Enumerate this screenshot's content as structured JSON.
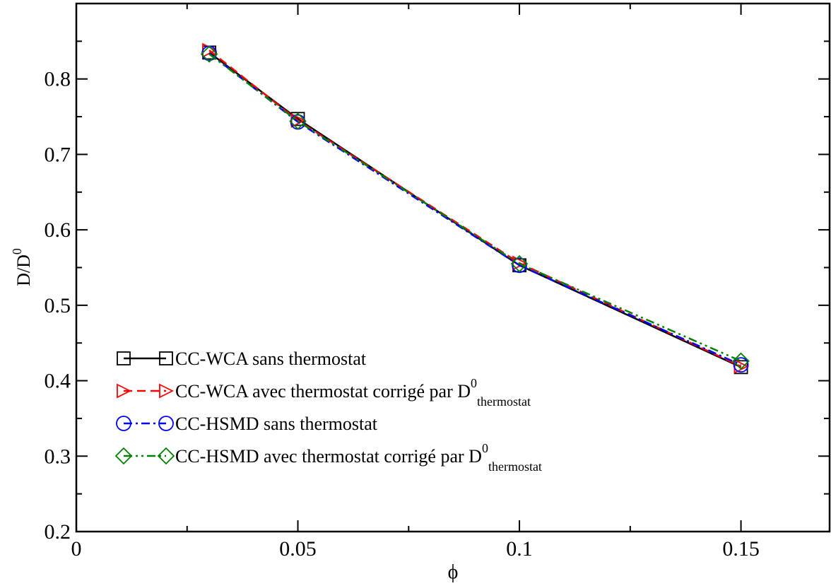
{
  "chart_data": {
    "type": "line",
    "xlabel": "ϕ",
    "ylabel": "D/D",
    "ylabel_sup": "0",
    "xlim": [
      0,
      0.17
    ],
    "ylim": [
      0.2,
      0.9
    ],
    "x_ticks": [
      0,
      0.05,
      0.1,
      0.15
    ],
    "x_tick_labels": [
      "0",
      "0.05",
      "0.1",
      "0.15"
    ],
    "y_ticks": [
      0.2,
      0.3,
      0.4,
      0.5,
      0.6,
      0.7,
      0.8
    ],
    "y_tick_labels": [
      "0.2",
      "0.3",
      "0.4",
      "0.5",
      "0.6",
      "0.7",
      "0.8"
    ],
    "grid": false,
    "legend_position": "bottom-left",
    "x": [
      0.03,
      0.05,
      0.1,
      0.15
    ],
    "series": [
      {
        "name": "CC-WCA sans thermostat",
        "name_sup": "",
        "name_sub": "",
        "values": [
          0.835,
          0.747,
          0.553,
          0.418
        ],
        "color": "#000000",
        "marker": "square",
        "dash": "solid"
      },
      {
        "name": "CC-WCA  avec thermostat corrigé par D",
        "name_sup": "0",
        "name_sub": "thermostat",
        "values": [
          0.838,
          0.745,
          0.556,
          0.419
        ],
        "color": "#ff0000",
        "marker": "triangle-right",
        "dash": "dashed"
      },
      {
        "name": "CC-HSMD sans thermostat",
        "name_sup": "",
        "name_sub": "",
        "values": [
          0.834,
          0.743,
          0.553,
          0.421
        ],
        "color": "#0000ff",
        "marker": "circle",
        "dash": "dashdot"
      },
      {
        "name": "CC-HSMD avec thermostat corrigé par D",
        "name_sup": "0",
        "name_sub": "thermostat",
        "values": [
          0.833,
          0.744,
          0.555,
          0.426
        ],
        "color": "#008000",
        "marker": "diamond",
        "dash": "dashdotdot"
      }
    ]
  }
}
